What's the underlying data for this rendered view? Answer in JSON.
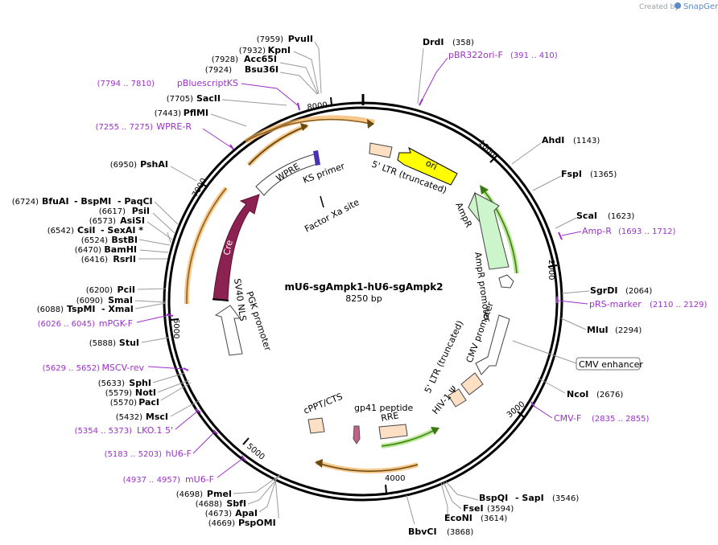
{
  "credit": {
    "text": "Created by",
    "brand": "SnapGene"
  },
  "plasmid": {
    "name": "mU6-sgAmpk1-hU6-sgAmpk2",
    "size": "8250 bp"
  },
  "ticks": [
    "1000",
    "2000",
    "3000",
    "4000",
    "5000",
    "6000",
    "7000",
    "8000"
  ],
  "features": {
    "ori": "ori",
    "ampr": "AmpR",
    "ampr_promoter": "AmpR promoter",
    "cmv_promoter": "CMV promoter",
    "ltr_5_right": "5' LTR (truncated)",
    "ltr_5_top": "5' LTR (truncated)",
    "hiv_psi": "HIV-1 Ψ",
    "rre": "RRE",
    "gp41": "gp41 peptide",
    "cppt": "cPPT/CTS",
    "cre": "Cre",
    "sv40_nls": "SV40 NLS",
    "pgk_promoter": "PGK promoter",
    "wpre": "WPRE",
    "ks_primer": "KS primer",
    "factor_xa": "Factor Xa site",
    "cmv_enhancer": "CMV enhancer"
  },
  "enzymes_right": [
    {
      "name": "DrdI",
      "pos": "(358)"
    },
    {
      "name": "AhdI",
      "pos": "(1143)"
    },
    {
      "name": "FspI",
      "pos": "(1365)"
    },
    {
      "name": "ScaI",
      "pos": "(1623)"
    },
    {
      "name": "SgrDI",
      "pos": "(2064)"
    },
    {
      "name": "MluI",
      "pos": "(2294)"
    },
    {
      "name": "NcoI",
      "pos": "(2676)"
    }
  ],
  "enzymes_bottom": {
    "bspqi": "BspQI",
    "sapi": "- SapI",
    "sapi_pos": "(3546)",
    "fsei": "FseI",
    "fsei_pos": "(3594)",
    "econi": "EcoNI",
    "econi_pos": "(3614)",
    "bbvci": "BbvCI",
    "bbvci_pos": "(3868)"
  },
  "enzymes_left": [
    {
      "pos": "(7959)",
      "name": "PvuII"
    },
    {
      "pos": "(7932)",
      "name": "KpnI"
    },
    {
      "pos": "(7928)",
      "name": "Acc65I"
    },
    {
      "pos": "(7924)",
      "name": "Bsu36I"
    },
    {
      "pos": "(7705)",
      "name": "SacII"
    },
    {
      "pos": "(7443)",
      "name": "PflMI"
    },
    {
      "pos": "(6950)",
      "name": "PshAI"
    },
    {
      "pos": "(6724)",
      "name": "BfuAI",
      "extra1": "- BspMI",
      "extra2": "- PaqCI"
    },
    {
      "pos": "(6617)",
      "name": "PsiI"
    },
    {
      "pos": "(6573)",
      "name": "AsiSI"
    },
    {
      "pos": "(6542)",
      "name": "CsiI",
      "extra1": "- SexAI *"
    },
    {
      "pos": "(6524)",
      "name": "BstBI"
    },
    {
      "pos": "(6470)",
      "name": "BamHI"
    },
    {
      "pos": "(6416)",
      "name": "RsrII"
    },
    {
      "pos": "(6200)",
      "name": "PciI"
    },
    {
      "pos": "(6090)",
      "name": "SmaI"
    },
    {
      "pos": "(6088)",
      "name": "TspMI",
      "extra1": "- XmaI"
    },
    {
      "pos": "(5888)",
      "name": "StuI"
    },
    {
      "pos": "(5633)",
      "name": "SphI"
    },
    {
      "pos": "(5579)",
      "name": "NotI"
    },
    {
      "pos": "(5570)",
      "name": "PacI"
    },
    {
      "pos": "(5432)",
      "name": "MscI"
    },
    {
      "pos": "(4698)",
      "name": "PmeI"
    },
    {
      "pos": "(4688)",
      "name": "SbfI"
    },
    {
      "pos": "(4673)",
      "name": "ApaI"
    },
    {
      "pos": "(4669)",
      "name": "PspOMI"
    }
  ],
  "primers_right": [
    {
      "name": "pBR322ori-F",
      "range": "(391 .. 410)"
    },
    {
      "name": "Amp-R",
      "range": "(1693 .. 1712)"
    },
    {
      "name": "pRS-marker",
      "range": "(2110 .. 2129)"
    },
    {
      "name": "CMV-F",
      "range": "(2835 .. 2855)"
    }
  ],
  "primers_left": [
    {
      "range": "(7794 .. 7810)",
      "name": "pBluescriptKS"
    },
    {
      "range": "(7255 .. 7275)",
      "name": "WPRE-R"
    },
    {
      "range": "(6026 .. 6045)",
      "name": "mPGK-F"
    },
    {
      "range": "(5629 .. 5652)",
      "name": "MSCV-rev"
    },
    {
      "range": "(5354 .. 5373)",
      "name": "LKO.1 5'"
    },
    {
      "range": "(5183 .. 5203)",
      "name": "hU6-F"
    },
    {
      "range": "(4937 .. 4957)",
      "name": "mU6-F"
    }
  ],
  "colors": {
    "backbone": "#000000",
    "ori": "#ffff00",
    "ampr": "#ccf5cc",
    "ampr_glow": "#a8e27a",
    "cre": "#8b2252",
    "utr": "#fde0c4",
    "orange_glow": "#f2b15a",
    "green_arrow": "#3b7a10",
    "primer": "#9b30c8",
    "credit_brand": "#5b88c8"
  }
}
